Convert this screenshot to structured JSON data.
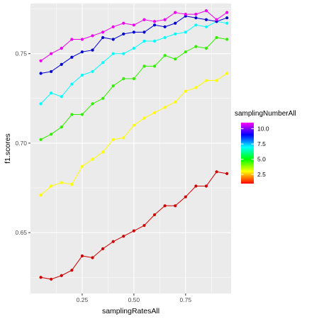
{
  "chart_data": {
    "type": "line",
    "title": "",
    "xlabel": "samplingRatesAll",
    "ylabel": "f1.scores",
    "xlim": [
      0.0,
      0.97
    ],
    "ylim": [
      0.616,
      0.778
    ],
    "x_ticks": [
      0.25,
      0.5,
      0.75
    ],
    "x_tick_labels": [
      "0.25",
      "0.50",
      "0.75"
    ],
    "y_ticks": [
      0.65,
      0.7,
      0.75
    ],
    "y_tick_labels": [
      "0.65",
      "0.70",
      "0.75"
    ],
    "grid": true,
    "background": "#EBEBEB",
    "legend": {
      "title": "samplingNumberAll",
      "placement": "right",
      "type": "colorbar",
      "range": [
        1,
        11
      ],
      "ticks": [
        2.5,
        5.0,
        7.5,
        10.0
      ],
      "tick_labels": [
        "2.5",
        "5.0",
        "7.5",
        "10.0"
      ],
      "colors": [
        "#FF0000",
        "#FFFF00",
        "#00FF00",
        "#00FFFF",
        "#0000FF",
        "#FF00FF"
      ]
    },
    "x": [
      0.05,
      0.1,
      0.15,
      0.2,
      0.25,
      0.3,
      0.35,
      0.4,
      0.45,
      0.5,
      0.55,
      0.6,
      0.65,
      0.7,
      0.75,
      0.8,
      0.85,
      0.9,
      0.95
    ],
    "series": [
      {
        "level": 1,
        "color": "#CC0000",
        "values": [
          0.625,
          0.624,
          0.626,
          0.629,
          0.637,
          0.636,
          0.641,
          0.645,
          0.648,
          0.651,
          0.654,
          0.66,
          0.665,
          0.665,
          0.67,
          0.676,
          0.676,
          0.684,
          0.683
        ]
      },
      {
        "level": 3,
        "color": "#FFFF00",
        "values": [
          0.671,
          0.676,
          0.678,
          0.677,
          0.687,
          0.691,
          0.695,
          0.702,
          0.703,
          0.71,
          0.714,
          0.717,
          0.72,
          0.723,
          0.729,
          0.731,
          0.735,
          0.735,
          0.739
        ]
      },
      {
        "level": 5,
        "color": "#33EE00",
        "values": [
          0.702,
          0.705,
          0.709,
          0.716,
          0.716,
          0.722,
          0.725,
          0.732,
          0.736,
          0.736,
          0.743,
          0.743,
          0.749,
          0.747,
          0.751,
          0.754,
          0.753,
          0.759,
          0.758
        ]
      },
      {
        "level": 7,
        "color": "#00FFFF",
        "values": [
          0.722,
          0.728,
          0.726,
          0.733,
          0.738,
          0.74,
          0.745,
          0.75,
          0.75,
          0.753,
          0.757,
          0.757,
          0.759,
          0.761,
          0.762,
          0.766,
          0.765,
          0.768,
          0.767
        ]
      },
      {
        "level": 9,
        "color": "#0000CC",
        "values": [
          0.739,
          0.74,
          0.744,
          0.748,
          0.751,
          0.752,
          0.759,
          0.758,
          0.761,
          0.762,
          0.762,
          0.766,
          0.765,
          0.767,
          0.771,
          0.77,
          0.769,
          0.768,
          0.77
        ]
      },
      {
        "level": 11,
        "color": "#EE00EE",
        "values": [
          0.746,
          0.75,
          0.753,
          0.758,
          0.758,
          0.76,
          0.762,
          0.765,
          0.767,
          0.766,
          0.769,
          0.768,
          0.769,
          0.773,
          0.772,
          0.772,
          0.774,
          0.769,
          0.773
        ]
      }
    ]
  }
}
